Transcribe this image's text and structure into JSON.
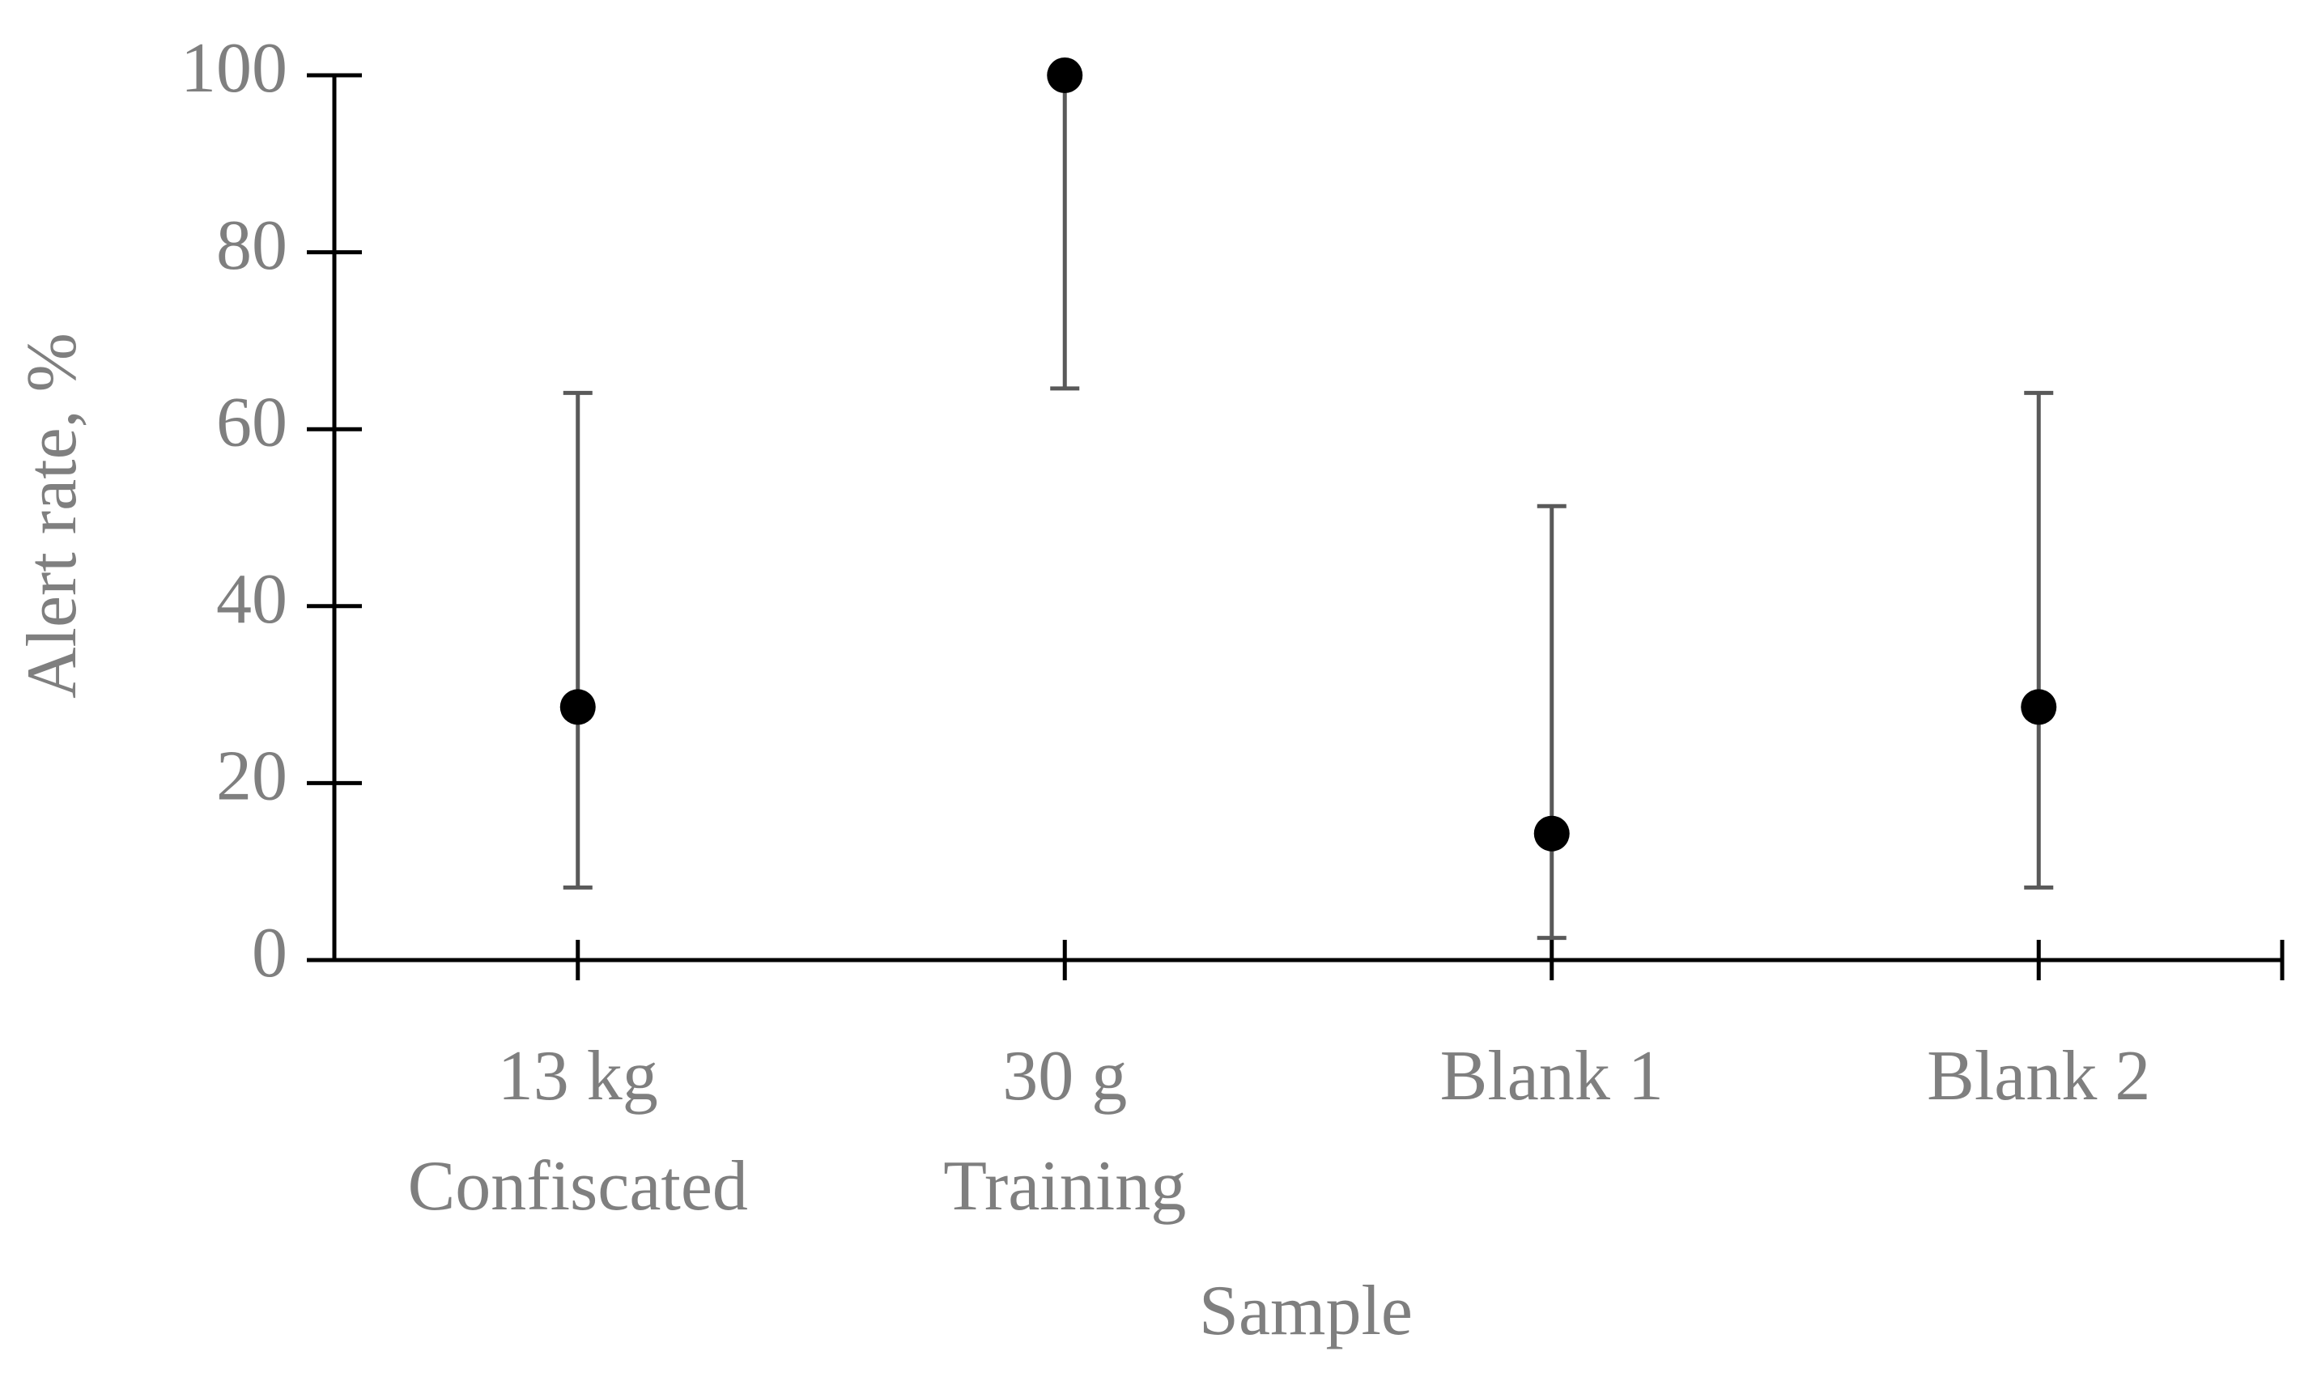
{
  "chart_data": {
    "type": "errorbar",
    "y_label": "Alert rate, %",
    "x_label": "Sample",
    "categories": [
      "13 kg\nConfiscated",
      "30 g\nTraining",
      "Blank 1",
      "Blank 2"
    ],
    "values": [
      28.6,
      100,
      14.3,
      28.6
    ],
    "error_minus": [
      20.4,
      35.4,
      11.8,
      20.4
    ],
    "error_plus": [
      35.5,
      0,
      37.0,
      35.5
    ],
    "color": "#000000",
    "error_color": "#595959",
    "ylim": [
      0,
      100
    ],
    "yticks": [
      0,
      20,
      40,
      60,
      80,
      100
    ],
    "grid": false
  }
}
